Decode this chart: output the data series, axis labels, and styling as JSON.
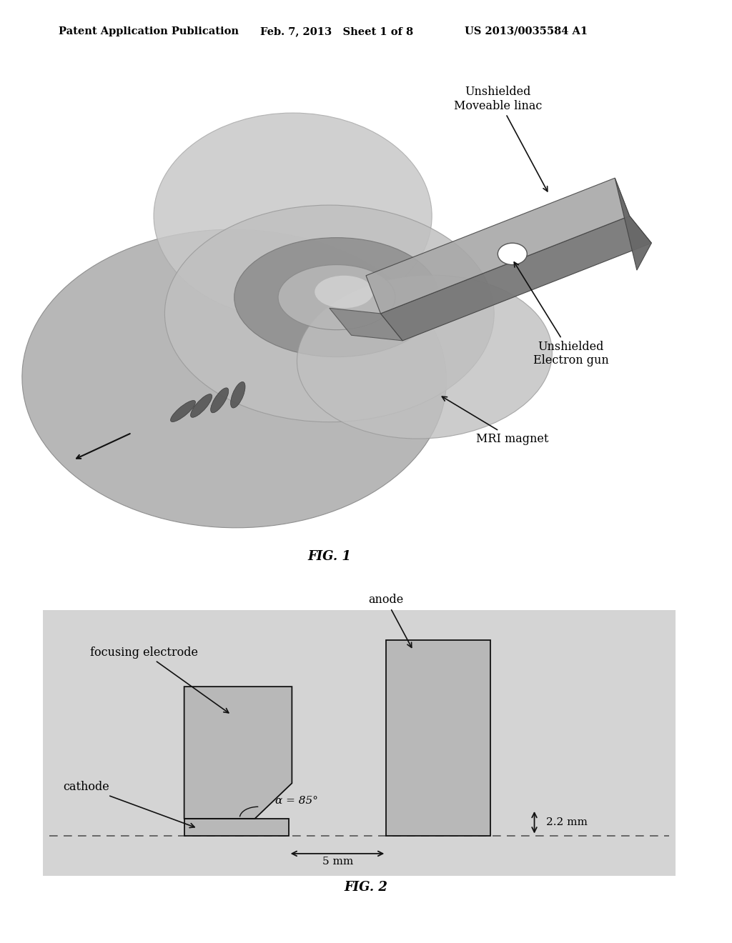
{
  "bg_color": "#ffffff",
  "header_left": "Patent Application Publication",
  "header_mid": "Feb. 7, 2013   Sheet 1 of 8",
  "header_right": "US 2013/0035584 A1",
  "fig1_caption": "FIG. 1",
  "fig2_caption": "FIG. 2",
  "label_unshielded_linac": "Unshielded\nMoveable linac",
  "label_unshielded_egun": "Unshielded\nElectron gun",
  "label_mri_magnet": "MRI magnet",
  "label_focusing": "focusing electrode",
  "label_cathode": "cathode",
  "label_anode": "anode",
  "label_alpha": "α = 85°",
  "label_5mm": "5 mm",
  "label_22mm": "2.2 mm",
  "shape_fill": "#b8b8b8",
  "shape_edge": "#111111",
  "fig2_bg": "#d4d4d4"
}
